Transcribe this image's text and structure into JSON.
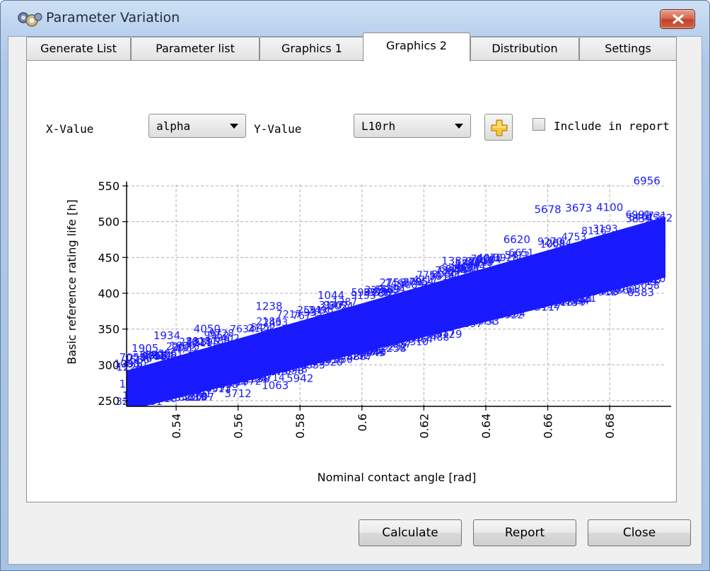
{
  "window": {
    "title": "Parameter Variation"
  },
  "tabs": [
    {
      "label": "Generate List",
      "active": false
    },
    {
      "label": "Parameter list",
      "active": false
    },
    {
      "label": "Graphics 1",
      "active": false
    },
    {
      "label": "Graphics 2",
      "active": true
    },
    {
      "label": "Distribution",
      "active": false
    },
    {
      "label": "Settings",
      "active": false
    }
  ],
  "controls": {
    "x_label": "X-Value",
    "x_value": "alpha",
    "y_label": "Y-Value",
    "y_value": "L10rh",
    "include_label": "Include in report",
    "include_checked": false
  },
  "chart_data": {
    "type": "scatter",
    "xlabel": "Nominal contact angle [rad]",
    "ylabel": "Basic reference rating life [h]",
    "x_ticks": [
      0.54,
      0.56,
      0.58,
      0.6,
      0.62,
      0.64,
      0.66,
      0.68
    ],
    "x_tick_labels": [
      "0.54",
      "0.56",
      "0.58",
      "0.6",
      "0.62",
      "0.64",
      "0.66",
      "0.68"
    ],
    "y_ticks": [
      250,
      300,
      350,
      400,
      450,
      500,
      550
    ],
    "y_tick_labels": [
      "250",
      "300",
      "350",
      "400",
      "450",
      "500",
      "550"
    ],
    "xlim": [
      0.524,
      0.698
    ],
    "ylim": [
      242,
      552
    ],
    "grid": true,
    "marker_color": "#1a1aff",
    "points": [
      {
        "x": 0.692,
        "y": 552,
        "label": "6956"
      },
      {
        "x": 0.67,
        "y": 514,
        "label": "3673"
      },
      {
        "x": 0.66,
        "y": 512,
        "label": "5678"
      },
      {
        "x": 0.68,
        "y": 515,
        "label": "4100"
      },
      {
        "x": 0.696,
        "y": 500,
        "label": "4562"
      },
      {
        "x": 0.694,
        "y": 470,
        "label": "2315"
      },
      {
        "x": 0.692,
        "y": 440,
        "label": "8812"
      },
      {
        "x": 0.686,
        "y": 418,
        "label": "5123"
      },
      {
        "x": 0.69,
        "y": 396,
        "label": "6383"
      },
      {
        "x": 0.67,
        "y": 388,
        "label": "1038"
      },
      {
        "x": 0.66,
        "y": 376,
        "label": "3117"
      },
      {
        "x": 0.64,
        "y": 356,
        "label": "4733"
      },
      {
        "x": 0.628,
        "y": 338,
        "label": "5129"
      },
      {
        "x": 0.61,
        "y": 318,
        "label": "2258"
      },
      {
        "x": 0.59,
        "y": 302,
        "label": "9336"
      },
      {
        "x": 0.58,
        "y": 276,
        "label": "5942"
      },
      {
        "x": 0.572,
        "y": 266,
        "label": "1063"
      },
      {
        "x": 0.56,
        "y": 255,
        "label": "3712"
      },
      {
        "x": 0.548,
        "y": 250,
        "label": "8107"
      },
      {
        "x": 0.536,
        "y": 248,
        "label": "1210"
      },
      {
        "x": 0.527,
        "y": 252,
        "label": "1442"
      },
      {
        "x": 0.526,
        "y": 268,
        "label": "1381"
      },
      {
        "x": 0.525,
        "y": 292,
        "label": "1223"
      },
      {
        "x": 0.526,
        "y": 305,
        "label": "7058"
      },
      {
        "x": 0.53,
        "y": 318,
        "label": "1905"
      },
      {
        "x": 0.537,
        "y": 336,
        "label": "1934"
      },
      {
        "x": 0.55,
        "y": 345,
        "label": "4050"
      },
      {
        "x": 0.57,
        "y": 377,
        "label": "1238"
      },
      {
        "x": 0.59,
        "y": 392,
        "label": "1044"
      },
      {
        "x": 0.61,
        "y": 410,
        "label": "2753"
      },
      {
        "x": 0.63,
        "y": 440,
        "label": "1382"
      },
      {
        "x": 0.65,
        "y": 470,
        "label": "6620"
      }
    ]
  },
  "footer": {
    "calculate_label": "Calculate",
    "report_label": "Report",
    "close_label": "Close"
  }
}
